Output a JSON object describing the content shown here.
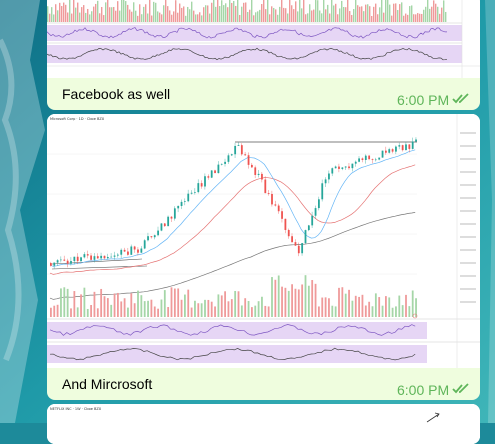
{
  "messages": [
    {
      "caption": "Facebook as well",
      "time": "6:00 PM",
      "status_icon": "double-check-icon"
    },
    {
      "caption": "And Mircrosoft",
      "time": "6:00 PM",
      "status_icon": "double-check-icon",
      "chart_title": "Microsoft Corp · 1D · Cboe BZX",
      "indicators": [
        "RSI 14 close",
        "Stoch 14 3 3",
        "MACD 12 26 close"
      ]
    },
    {
      "chart_title": "NETFLIX INC · 1W · Cboe BZX"
    }
  ],
  "colors": {
    "bubble": "#effdde",
    "accent": "#5fb55a",
    "candle_up": "#26a69a",
    "candle_down": "#ef5350",
    "indicator_band": "#e6d6f5"
  }
}
